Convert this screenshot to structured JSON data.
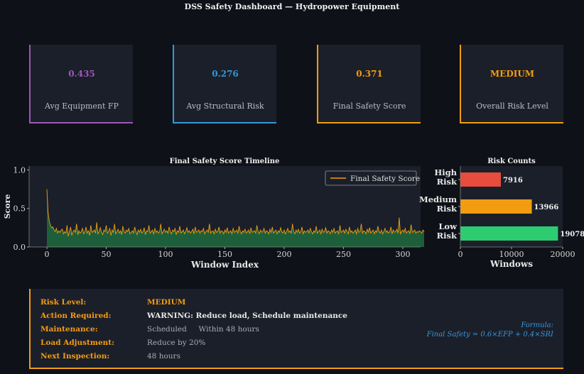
{
  "header": {
    "title": "DSS Safety Dashboard — Hydropower Equipment"
  },
  "metrics": [
    {
      "value": "0.435",
      "label": "Avg Equipment FP",
      "color": "#9b59b6"
    },
    {
      "value": "0.276",
      "label": "Avg Structural Risk",
      "color": "#3498db"
    },
    {
      "value": "0.371",
      "label": "Final Safety Score",
      "color": "#f39c12"
    },
    {
      "value": "MEDIUM",
      "label": "Overall Risk Level",
      "color": "#f39c12"
    }
  ],
  "chart_data": [
    {
      "type": "line",
      "title": "Final Safety Score Timeline",
      "xlabel": "Window Index",
      "ylabel": "Score",
      "xlim": [
        -15,
        315
      ],
      "ylim": [
        0,
        1.05
      ],
      "xticks": [
        0,
        50,
        100,
        150,
        200,
        250,
        300
      ],
      "yticks": [
        0.0,
        0.5,
        1.0
      ],
      "legend": "top-right",
      "series": [
        {
          "name": "Final Safety Score",
          "color": "#f39c12",
          "fill_color": "#1e6b3e",
          "x_start": 0,
          "x_step": 1,
          "values": [
            0.75,
            0.45,
            0.33,
            0.28,
            0.25,
            0.26,
            0.22,
            0.2,
            0.24,
            0.18,
            0.21,
            0.19,
            0.22,
            0.23,
            0.17,
            0.2,
            0.18,
            0.28,
            0.14,
            0.2,
            0.26,
            0.15,
            0.2,
            0.22,
            0.19,
            0.3,
            0.16,
            0.21,
            0.18,
            0.2,
            0.24,
            0.17,
            0.2,
            0.26,
            0.18,
            0.21,
            0.15,
            0.28,
            0.19,
            0.2,
            0.22,
            0.18,
            0.32,
            0.17,
            0.2,
            0.25,
            0.19,
            0.16,
            0.22,
            0.2,
            0.28,
            0.18,
            0.2,
            0.24,
            0.15,
            0.22,
            0.19,
            0.3,
            0.17,
            0.2,
            0.23,
            0.18,
            0.21,
            0.16,
            0.27,
            0.2,
            0.18,
            0.22,
            0.2,
            0.24,
            0.17,
            0.19,
            0.21,
            0.18,
            0.26,
            0.2,
            0.16,
            0.22,
            0.19,
            0.23,
            0.18,
            0.2,
            0.25,
            0.16,
            0.21,
            0.2,
            0.28,
            0.18,
            0.2,
            0.22,
            0.17,
            0.24,
            0.19,
            0.21,
            0.18,
            0.2,
            0.3,
            0.17,
            0.2,
            0.23,
            0.19,
            0.21,
            0.18,
            0.26,
            0.2,
            0.17,
            0.22,
            0.2,
            0.24,
            0.16,
            0.21,
            0.19,
            0.27,
            0.18,
            0.2,
            0.22,
            0.17,
            0.2,
            0.25,
            0.19,
            0.21,
            0.18,
            0.2,
            0.23,
            0.17,
            0.26,
            0.19,
            0.2,
            0.22,
            0.18,
            0.21,
            0.2,
            0.24,
            0.17,
            0.2,
            0.22,
            0.19,
            0.3,
            0.18,
            0.2,
            0.21,
            0.17,
            0.23,
            0.19,
            0.2,
            0.26,
            0.18,
            0.21,
            0.2,
            0.17,
            0.22,
            0.19,
            0.25,
            0.18,
            0.2,
            0.21,
            0.17,
            0.24,
            0.19,
            0.2,
            0.22,
            0.18,
            0.27,
            0.2,
            0.17,
            0.21,
            0.19,
            0.23,
            0.18,
            0.2,
            0.22,
            0.17,
            0.25,
            0.19,
            0.2,
            0.21,
            0.18,
            0.28,
            0.2,
            0.17,
            0.22,
            0.19,
            0.2,
            0.24,
            0.18,
            0.21,
            0.2,
            0.17,
            0.23,
            0.19,
            0.26,
            0.18,
            0.2,
            0.22,
            0.17,
            0.21,
            0.19,
            0.25,
            0.2,
            0.18,
            0.22,
            0.17,
            0.2,
            0.24,
            0.19,
            0.21,
            0.18,
            0.3,
            0.2,
            0.17,
            0.22,
            0.19,
            0.23,
            0.18,
            0.2,
            0.26,
            0.17,
            0.21,
            0.19,
            0.2,
            0.22,
            0.18,
            0.24,
            0.2,
            0.17,
            0.21,
            0.19,
            0.27,
            0.18,
            0.2,
            0.22,
            0.17,
            0.23,
            0.19,
            0.2,
            0.25,
            0.18,
            0.21,
            0.2,
            0.17,
            0.22,
            0.19,
            0.24,
            0.18,
            0.2,
            0.21,
            0.17,
            0.28,
            0.19,
            0.2,
            0.22,
            0.18,
            0.23,
            0.2,
            0.17,
            0.26,
            0.19,
            0.21,
            0.18,
            0.2,
            0.22,
            0.17,
            0.24,
            0.19,
            0.2,
            0.3,
            0.18,
            0.21,
            0.2,
            0.17,
            0.23,
            0.19,
            0.25,
            0.18,
            0.2,
            0.22,
            0.17,
            0.21,
            0.19,
            0.27,
            0.2,
            0.18,
            0.22,
            0.17,
            0.2,
            0.24,
            0.19,
            0.21,
            0.18,
            0.2,
            0.26,
            0.17,
            0.22,
            0.19,
            0.2,
            0.23,
            0.18,
            0.38,
            0.17,
            0.2,
            0.22,
            0.19,
            0.24,
            0.18,
            0.2,
            0.21,
            0.17,
            0.29,
            0.19,
            0.2,
            0.22,
            0.18,
            0.2,
            0.19,
            0.21,
            0.2,
            0.18,
            0.22,
            0.2
          ]
        }
      ]
    },
    {
      "type": "bar",
      "orientation": "horizontal",
      "title": "Risk Counts",
      "xlabel": "Windows",
      "categories": [
        "High Risk",
        "Medium Risk",
        "Low Risk"
      ],
      "category_lines": [
        [
          "High",
          "Risk"
        ],
        [
          "Medium",
          "Risk"
        ],
        [
          "Low",
          "Risk"
        ]
      ],
      "values": [
        7916,
        13966,
        19078
      ],
      "colors": [
        "#e74c3c",
        "#f39c12",
        "#2ecc71"
      ],
      "xlim": [
        0,
        20000
      ],
      "xticks": [
        0,
        10000,
        20000
      ]
    }
  ],
  "action_panel": {
    "rows": [
      {
        "key": "Risk Level:",
        "value": "MEDIUM",
        "value_color": "#f39c12",
        "bold": true
      },
      {
        "key": "Action Required:",
        "value": "WARNING: Reduce load, Schedule maintenance",
        "bold": true
      },
      {
        "key": "Maintenance:",
        "value": "Scheduled     Within 48 hours"
      },
      {
        "key": "Load Adjustment:",
        "value": "Reduce by 20%"
      },
      {
        "key": "Next Inspection:",
        "value": "48 hours"
      }
    ],
    "formula_label": "Formula:",
    "formula": "Final Safety = 0.6×EFP + 0.4×SRI"
  }
}
